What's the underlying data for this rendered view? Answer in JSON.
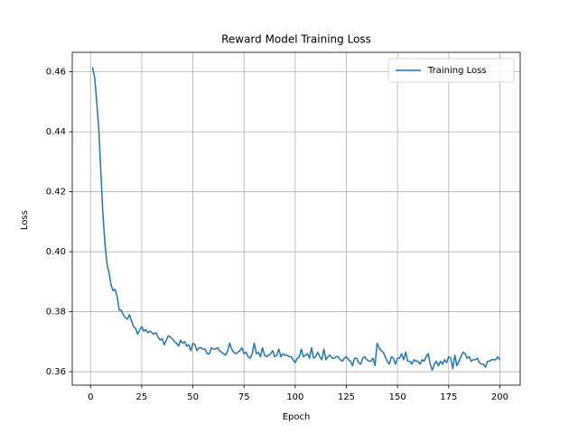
{
  "chart_data": {
    "type": "line",
    "title": "Reward Model Training Loss",
    "x_label": "Epoch",
    "y_label": "Loss",
    "x": [
      1,
      2,
      3,
      4,
      5,
      6,
      7,
      8,
      9,
      10,
      11,
      12,
      13,
      14,
      15,
      16,
      17,
      18,
      19,
      20,
      21,
      22,
      23,
      24,
      25,
      26,
      27,
      28,
      29,
      30,
      31,
      32,
      33,
      34,
      35,
      36,
      37,
      38,
      39,
      40,
      41,
      42,
      43,
      44,
      45,
      46,
      47,
      48,
      49,
      50,
      51,
      52,
      53,
      54,
      55,
      56,
      57,
      58,
      59,
      60,
      61,
      62,
      63,
      64,
      65,
      66,
      67,
      68,
      69,
      70,
      71,
      72,
      73,
      74,
      75,
      76,
      77,
      78,
      79,
      80,
      81,
      82,
      83,
      84,
      85,
      86,
      87,
      88,
      89,
      90,
      91,
      92,
      93,
      94,
      95,
      96,
      97,
      98,
      99,
      100,
      101,
      102,
      103,
      104,
      105,
      106,
      107,
      108,
      109,
      110,
      111,
      112,
      113,
      114,
      115,
      116,
      117,
      118,
      119,
      120,
      121,
      122,
      123,
      124,
      125,
      126,
      127,
      128,
      129,
      130,
      131,
      132,
      133,
      134,
      135,
      136,
      137,
      138,
      139,
      140,
      141,
      142,
      143,
      144,
      145,
      146,
      147,
      148,
      149,
      150,
      151,
      152,
      153,
      154,
      155,
      156,
      157,
      158,
      159,
      160,
      161,
      162,
      163,
      164,
      165,
      166,
      167,
      168,
      169,
      170,
      171,
      172,
      173,
      174,
      175,
      176,
      177,
      178,
      179,
      180,
      181,
      182,
      183,
      184,
      185,
      186,
      187,
      188,
      189,
      190,
      191,
      192,
      193,
      194,
      195,
      196,
      197,
      198,
      199,
      200
    ],
    "series": [
      {
        "name": "Training Loss",
        "color": "#1f77b4",
        "values": [
          0.4615,
          0.458,
          0.45,
          0.441,
          0.427,
          0.413,
          0.403,
          0.396,
          0.393,
          0.389,
          0.387,
          0.3875,
          0.385,
          0.3805,
          0.3805,
          0.379,
          0.378,
          0.3775,
          0.379,
          0.377,
          0.375,
          0.3745,
          0.3725,
          0.374,
          0.375,
          0.3735,
          0.374,
          0.373,
          0.3735,
          0.373,
          0.3725,
          0.373,
          0.3715,
          0.3705,
          0.371,
          0.369,
          0.3705,
          0.372,
          0.3715,
          0.371,
          0.37,
          0.3695,
          0.3685,
          0.3705,
          0.3695,
          0.37,
          0.3685,
          0.369,
          0.367,
          0.3695,
          0.369,
          0.367,
          0.368,
          0.368,
          0.3675,
          0.3675,
          0.366,
          0.366,
          0.368,
          0.3675,
          0.3675,
          0.368,
          0.367,
          0.3665,
          0.366,
          0.3655,
          0.367,
          0.3695,
          0.3675,
          0.3665,
          0.366,
          0.3665,
          0.367,
          0.368,
          0.366,
          0.3665,
          0.365,
          0.3645,
          0.366,
          0.3695,
          0.366,
          0.3665,
          0.365,
          0.368,
          0.3655,
          0.365,
          0.3655,
          0.366,
          0.367,
          0.365,
          0.3655,
          0.3675,
          0.365,
          0.366,
          0.3655,
          0.3655,
          0.365,
          0.365,
          0.364,
          0.363,
          0.3645,
          0.365,
          0.3675,
          0.365,
          0.3655,
          0.366,
          0.3645,
          0.368,
          0.3645,
          0.365,
          0.3665,
          0.365,
          0.364,
          0.3675,
          0.364,
          0.365,
          0.3655,
          0.3645,
          0.3645,
          0.365,
          0.365,
          0.364,
          0.3635,
          0.3645,
          0.365,
          0.364,
          0.3635,
          0.362,
          0.3645,
          0.3645,
          0.363,
          0.3625,
          0.3645,
          0.365,
          0.364,
          0.3635,
          0.3635,
          0.3645,
          0.362,
          0.3695,
          0.368,
          0.367,
          0.3665,
          0.365,
          0.3635,
          0.3625,
          0.365,
          0.3645,
          0.3625,
          0.3645,
          0.3645,
          0.366,
          0.364,
          0.3665,
          0.3635,
          0.3635,
          0.3625,
          0.364,
          0.3635,
          0.3635,
          0.3625,
          0.364,
          0.3635,
          0.365,
          0.366,
          0.3625,
          0.3605,
          0.3625,
          0.3635,
          0.362,
          0.3635,
          0.3625,
          0.364,
          0.363,
          0.365,
          0.3645,
          0.361,
          0.3655,
          0.362,
          0.3635,
          0.365,
          0.3665,
          0.366,
          0.3645,
          0.365,
          0.3635,
          0.364,
          0.364,
          0.3645,
          0.363,
          0.3625,
          0.3625,
          0.3615,
          0.3635,
          0.3635,
          0.364,
          0.364,
          0.364,
          0.365,
          0.364
        ]
      }
    ],
    "xlim": [
      -8.95,
      209.95
    ],
    "xticks": [
      0,
      25,
      50,
      75,
      100,
      125,
      150,
      175,
      200
    ],
    "ylim": [
      0.3555,
      0.4665
    ],
    "yticks": [
      0.36,
      0.38,
      {
        "value": 0.4,
        "label": "0.40"
      },
      0.42,
      0.44,
      0.46
    ],
    "grid": true,
    "legend": "upper right"
  }
}
